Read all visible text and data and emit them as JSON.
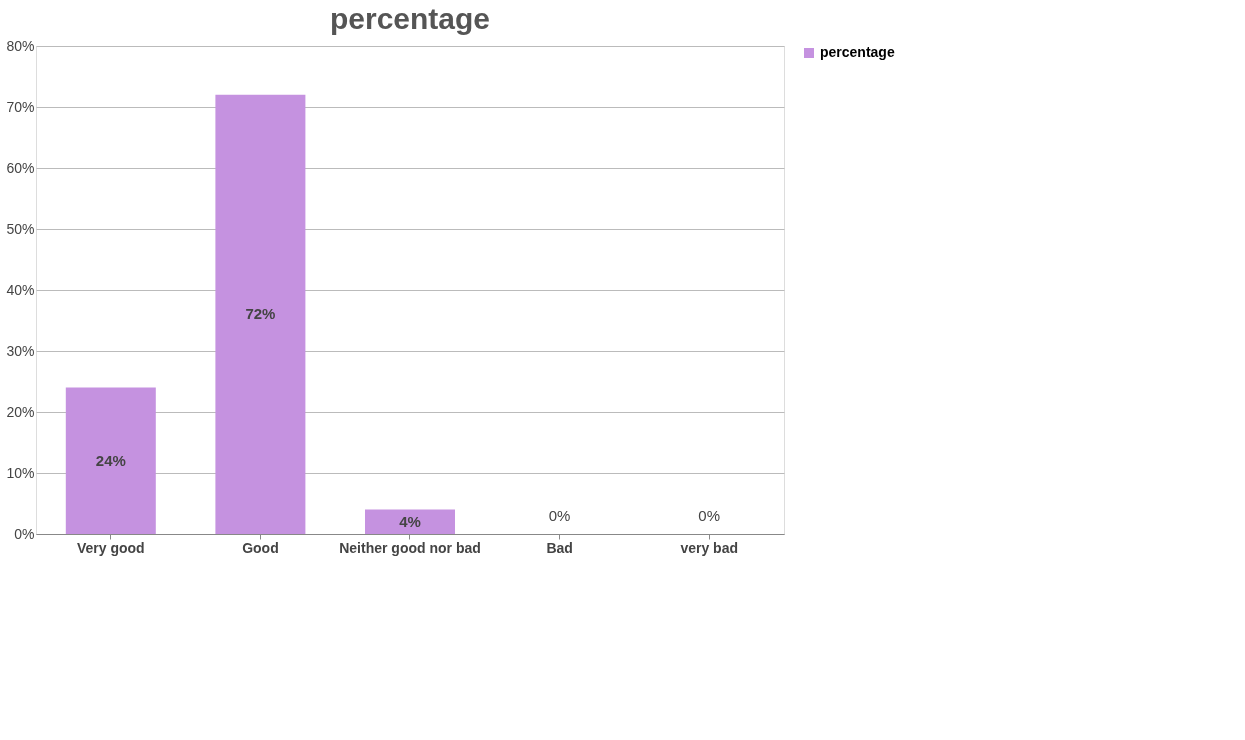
{
  "chart_data": {
    "type": "bar",
    "title": "percentage",
    "categories": [
      "Very good",
      "Good",
      "Neither good nor bad",
      "Bad",
      "very bad"
    ],
    "series": [
      {
        "name": "percentage",
        "color": "#c592e0",
        "values": [
          24,
          72,
          4,
          0,
          0
        ],
        "value_labels": [
          "24%",
          "72%",
          "4%",
          "0%",
          "0%"
        ]
      }
    ],
    "ylim": [
      0,
      80
    ],
    "yticks": [
      {
        "value": 0,
        "label": "0%"
      },
      {
        "value": 10,
        "label": "10%"
      },
      {
        "value": 20,
        "label": "20%"
      },
      {
        "value": 30,
        "label": "30%"
      },
      {
        "value": 40,
        "label": "40%"
      },
      {
        "value": 50,
        "label": "50%"
      },
      {
        "value": 60,
        "label": "60%"
      },
      {
        "value": 70,
        "label": "70%"
      },
      {
        "value": 80,
        "label": "80%"
      }
    ],
    "grid": "y",
    "legend": "right"
  }
}
